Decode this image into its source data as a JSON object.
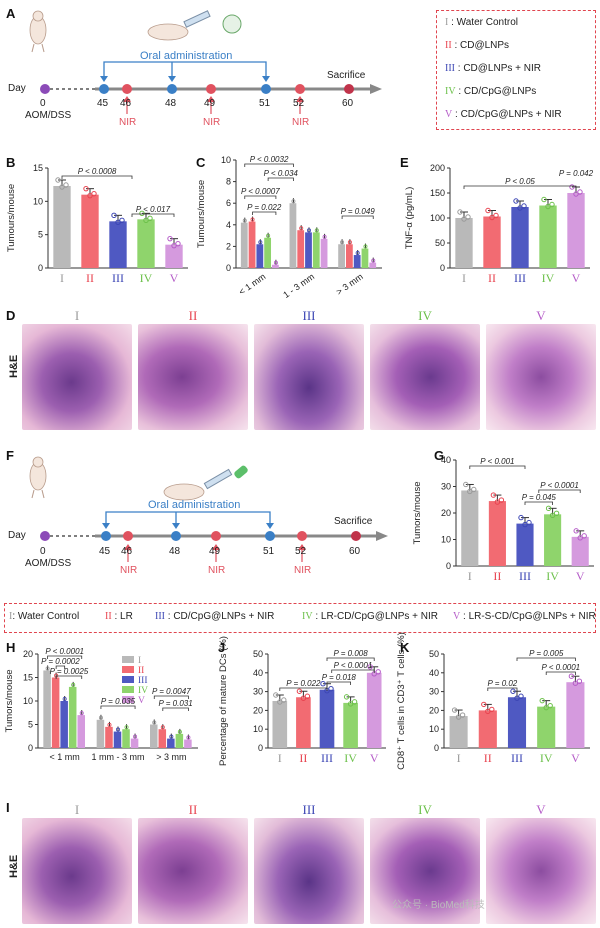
{
  "figure": {
    "panels": [
      "A",
      "B",
      "C",
      "D",
      "E",
      "F",
      "G",
      "H",
      "I",
      "J",
      "K"
    ],
    "roman": [
      "I",
      "II",
      "III",
      "IV",
      "V"
    ],
    "roman_colors": [
      "#9a9a9a",
      "#e8434f",
      "#3c46b4",
      "#6cc04a",
      "#b55cc8"
    ],
    "bar_colors": [
      "#b9b9b9",
      "#f26b72",
      "#4f59c2",
      "#8fd46c",
      "#d59ade"
    ],
    "he_label": "H&E",
    "watermark": "公众号 · BioMed科技"
  },
  "timeline_A": {
    "day_label": "Day",
    "days": [
      "0",
      "45",
      "46",
      "48",
      "49",
      "51",
      "52",
      "60"
    ],
    "start_label": "AOM/DSS",
    "oral_label": "Oral administration",
    "nir_label": "NIR",
    "end_label": "Sacrifice"
  },
  "legend_A": {
    "items": [
      {
        "roman": "I",
        "text": ": Water Control"
      },
      {
        "roman": "II",
        "text": ": CD@LNPs"
      },
      {
        "roman": "III",
        "text": ": CD@LNPs + NIR"
      },
      {
        "roman": "IV",
        "text": ": CD/CpG@LNPs"
      },
      {
        "roman": "V",
        "text": ": CD/CpG@LNPs + NIR"
      }
    ]
  },
  "timeline_F": {
    "day_label": "Day",
    "days": [
      "0",
      "45",
      "46",
      "48",
      "49",
      "51",
      "52",
      "60"
    ],
    "start_label": "AOM/DSS",
    "oral_label": "Oral administration",
    "nir_label": "NIR",
    "end_label": "Sacrifice"
  },
  "groups_F": {
    "items": [
      {
        "roman": "I",
        "text": ": Water Control"
      },
      {
        "roman": "II",
        "text": ": LR"
      },
      {
        "roman": "III",
        "text": ": CD/CpG@LNPs + NIR"
      },
      {
        "roman": "IV",
        "text": ": LR-CD/CpG@LNPs + NIR"
      },
      {
        "roman": "V",
        "text": ": LR-S-CD/CpG@LNPs + NIR"
      }
    ]
  },
  "chart_data": [
    {
      "panel": "B",
      "type": "bar",
      "ylabel": "Tumours/mouse",
      "ylim": [
        0,
        15
      ],
      "yticks": [
        "0",
        "5",
        "10",
        "15"
      ],
      "categories": [
        "I",
        "II",
        "III",
        "IV",
        "V"
      ],
      "values": [
        12.3,
        11.0,
        7.0,
        7.3,
        3.5
      ],
      "annotations": [
        "P < 0.0008",
        "P < 0.017"
      ]
    },
    {
      "panel": "C",
      "type": "bar",
      "ylabel": "Tumours/mouse",
      "ylim": [
        0,
        10
      ],
      "yticks": [
        "0",
        "2",
        "4",
        "6",
        "8",
        "10"
      ],
      "categories": [
        "< 1 mm",
        "1 - 3 mm",
        "> 3 mm"
      ],
      "series": [
        {
          "values": [
            4.2,
            6.0,
            2.2
          ]
        },
        {
          "values": [
            4.3,
            3.5,
            2.2
          ]
        },
        {
          "values": [
            2.2,
            3.3,
            1.2
          ]
        },
        {
          "values": [
            2.8,
            3.3,
            1.8
          ]
        },
        {
          "values": [
            0.3,
            2.7,
            0.5
          ]
        }
      ],
      "annotations": [
        "P < 0.0032",
        "P < 0.034",
        "P < 0.0007",
        "P = 0.022",
        "P = 0.049"
      ]
    },
    {
      "panel": "E",
      "type": "bar",
      "ylabel": "TNF-α (pg/mL)",
      "ylim": [
        0,
        200
      ],
      "yticks": [
        "0",
        "50",
        "100",
        "150",
        "200"
      ],
      "categories": [
        "I",
        "II",
        "III",
        "IV",
        "V"
      ],
      "values": [
        100,
        103,
        122,
        125,
        150
      ],
      "annotations": [
        "P < 0.05",
        "P = 0.042"
      ]
    },
    {
      "panel": "G",
      "type": "bar",
      "ylabel": "Tumors/mouse",
      "ylim": [
        0,
        40
      ],
      "yticks": [
        "0",
        "10",
        "20",
        "30",
        "40"
      ],
      "categories": [
        "I",
        "II",
        "III",
        "IV",
        "V"
      ],
      "values": [
        28.5,
        24.5,
        16.0,
        19.5,
        11.0
      ],
      "annotations": [
        "P < 0.001",
        "P = 0.045",
        "P < 0.0001"
      ]
    },
    {
      "panel": "H",
      "type": "bar",
      "ylabel": "Tumors/mouse",
      "ylim": [
        0,
        20
      ],
      "yticks": [
        "0",
        "5",
        "10",
        "15",
        "20"
      ],
      "categories": [
        "< 1 mm",
        "1 mm - 3 mm",
        "> 3 mm"
      ],
      "series": [
        {
          "name": "I",
          "values": [
            16.5,
            6.0,
            5.0
          ]
        },
        {
          "name": "II",
          "values": [
            15.0,
            4.5,
            4.0
          ]
        },
        {
          "name": "III",
          "values": [
            10.0,
            3.5,
            2.0
          ]
        },
        {
          "name": "IV",
          "values": [
            13.0,
            4.0,
            3.0
          ]
        },
        {
          "name": "V",
          "values": [
            7.0,
            2.0,
            1.8
          ]
        }
      ],
      "annotations": [
        "P < 0.0001",
        "P = 0.0002",
        "P = 0.0025",
        "P = 0.035",
        "P = 0.0047",
        "P = 0.031"
      ]
    },
    {
      "panel": "J",
      "type": "bar",
      "ylabel": "Percentage of mature DCs (%)",
      "ylim": [
        0,
        50
      ],
      "yticks": [
        "0",
        "10",
        "20",
        "30",
        "40",
        "50"
      ],
      "categories": [
        "I",
        "II",
        "III",
        "IV",
        "V"
      ],
      "values": [
        25,
        27,
        31,
        24,
        40
      ],
      "annotations": [
        "P = 0.008",
        "P < 0.0001",
        "P = 0.022",
        "P = 0.018"
      ]
    },
    {
      "panel": "K",
      "type": "bar",
      "ylabel": "CD8⁺ T cells in CD3⁺ T cells (%)",
      "ylim": [
        0,
        50
      ],
      "yticks": [
        "0",
        "10",
        "20",
        "30",
        "40",
        "50"
      ],
      "categories": [
        "I",
        "II",
        "III",
        "IV",
        "V"
      ],
      "values": [
        17,
        20,
        27,
        22,
        35
      ],
      "annotations": [
        "P = 0.005",
        "P < 0.0001",
        "P = 0.02"
      ]
    }
  ]
}
